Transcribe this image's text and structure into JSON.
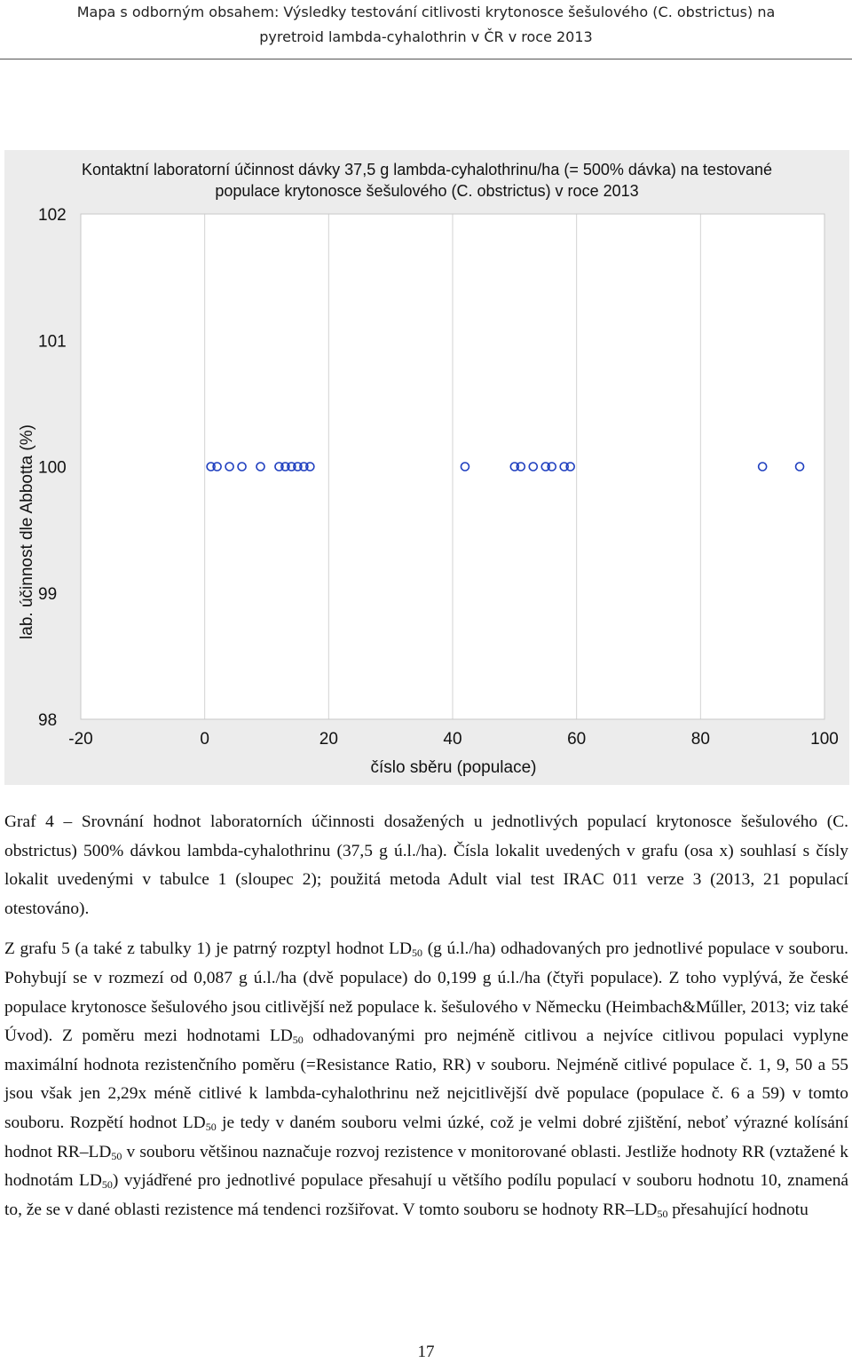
{
  "header": {
    "line1": "Mapa s odborným obsahem: Výsledky testování citlivosti krytonosce šešulového (C. obstrictus) na",
    "line2": "pyretroid lambda-cyhalothrin v ČR v roce 2013"
  },
  "chart_data": {
    "type": "scatter",
    "title_line1": "Kontaktní laboratorní účinnost dávky 37,5 g lambda-cyhalothrinu/ha (= 500% dávka) na testované",
    "title_line2": "populace krytonosce šešulového (C. obstrictus) v roce 2013",
    "xlabel": "číslo sběru (populace)",
    "ylabel": "lab. účinnost dle Abbotta (%)",
    "xlim": [
      -20,
      100
    ],
    "ylim": [
      98,
      102
    ],
    "x_ticks": [
      -20,
      0,
      20,
      40,
      60,
      80,
      100
    ],
    "y_ticks": [
      98,
      99,
      100,
      101,
      102
    ],
    "vertical_grid": true,
    "marker_color": "#1f3fbf",
    "x": [
      1,
      2,
      4,
      6,
      9,
      12,
      13,
      14,
      15,
      16,
      17,
      42,
      50,
      51,
      53,
      55,
      56,
      58,
      59,
      90,
      96
    ],
    "y": [
      100,
      100,
      100,
      100,
      100,
      100,
      100,
      100,
      100,
      100,
      100,
      100,
      100,
      100,
      100,
      100,
      100,
      100,
      100,
      100,
      100
    ]
  },
  "paragraph1": {
    "text1": "Graf 4 – Srovnání hodnot laboratorních účinnosti dosažených u jednotlivých populací krytonosce šešulového (C. obstrictus) 500% dávkou lambda-cyhalothrinu (37,5 g ú.l./ha). Čísla lokalit uvedených v grafu (osa x) souhlasí s čísly lokalit uvedenými v tabulce 1 (sloupec 2); použitá metoda Adult vial test IRAC 011 verze 3 (2013, 21 populací otestováno)."
  },
  "paragraph2": {
    "sub": "50",
    "t1": "Z grafu 5 (a také z tabulky 1) je patrný rozptyl hodnot LD",
    "t2": " (g ú.l./ha) odhadovaných pro jednotlivé populace v souboru. Pohybují se v rozmezí od 0,087 g ú.l./ha (dvě populace) do 0,199 g ú.l./ha (čtyři populace). Z toho vyplývá, že české populace krytonosce šešulového jsou citlivější než populace k. šešulového v Německu (Heimbach&Műller, 2013; viz také Úvod). Z poměru mezi hodnotami LD",
    "t3": " odhadovanými pro nejméně citlivou a nejvíce citlivou populaci vyplyne maximální hodnota rezistenčního poměru (=Resistance Ratio, RR) v souboru. Nejméně citlivé populace č. 1, 9, 50 a 55 jsou však jen 2,29x méně citlivé k lambda-cyhalothrinu než nejcitlivější dvě populace (populace č. 6 a 59) v tomto souboru. Rozpětí hodnot LD",
    "t4": " je tedy v daném souboru velmi úzké, což je velmi dobré zjištění, neboť výrazné kolísání hodnot RR–LD",
    "t5": " v souboru většinou naznačuje rozvoj rezistence v monitorované oblasti. Jestliže hodnoty RR (vztažené k hodnotám LD",
    "t6": ") vyjádřené pro jednotlivé populace přesahují u většího podílu populací v souboru hodnotu 10, znamená to, že se v dané oblasti rezistence má tendenci rozšiřovat. V tomto souboru se hodnoty RR–LD",
    "t7": " přesahující hodnotu"
  },
  "page_number": "17"
}
